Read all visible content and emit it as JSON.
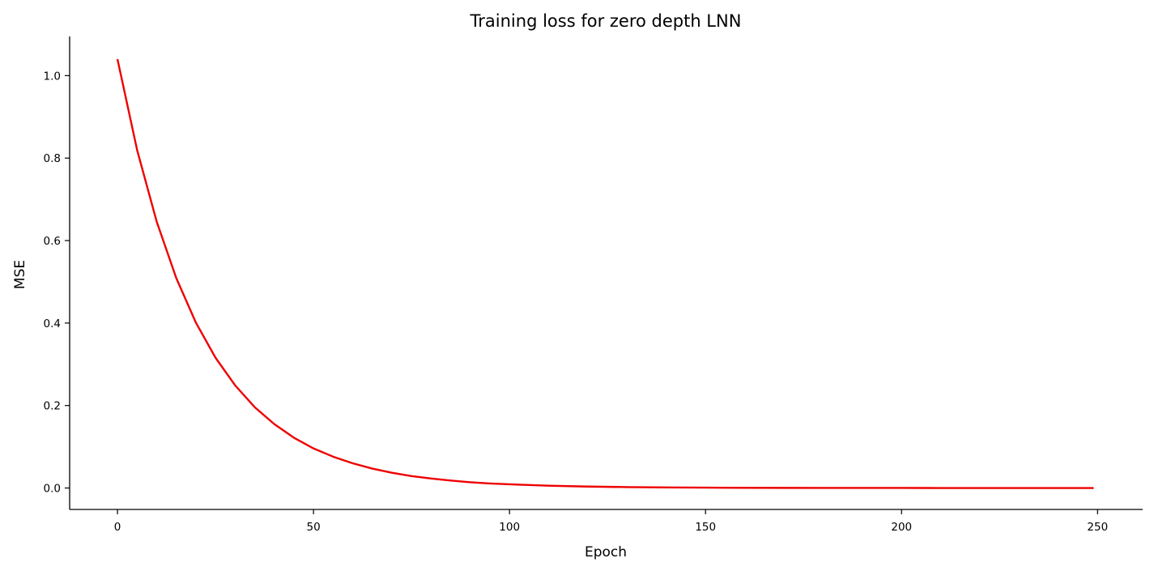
{
  "chart_data": {
    "type": "line",
    "title": "Training loss for zero depth LNN",
    "xlabel": "Epoch",
    "ylabel": "MSE",
    "xlim": [
      -12.2,
      261.5
    ],
    "ylim": [
      -0.052,
      1.095
    ],
    "xticks": [
      0,
      50,
      100,
      150,
      200,
      250
    ],
    "yticks": [
      0.0,
      0.2,
      0.4,
      0.6,
      0.8,
      1.0
    ],
    "xtick_labels": [
      "0",
      "50",
      "100",
      "150",
      "200",
      "250"
    ],
    "ytick_labels": [
      "0.0",
      "0.2",
      "0.4",
      "0.6",
      "0.8",
      "1.0"
    ],
    "grid": false,
    "series": [
      {
        "color": "#ee0000",
        "x": [
          0,
          5,
          10,
          15,
          20,
          25,
          30,
          35,
          40,
          45,
          50,
          55,
          60,
          65,
          70,
          75,
          80,
          85,
          90,
          95,
          100,
          110,
          120,
          130,
          140,
          150,
          160,
          170,
          180,
          190,
          200,
          210,
          220,
          230,
          240,
          249
        ],
        "y": [
          1.04,
          0.82,
          0.646,
          0.509,
          0.401,
          0.316,
          0.249,
          0.196,
          0.155,
          0.122,
          0.096,
          0.076,
          0.06,
          0.047,
          0.037,
          0.029,
          0.023,
          0.018,
          0.014,
          0.011,
          0.009,
          0.0056,
          0.0035,
          0.0022,
          0.0014,
          0.0009,
          0.0005,
          0.0003,
          0.0002,
          0.0001,
          0.0001,
          0.0,
          0.0,
          0.0,
          0.0,
          0.0
        ]
      }
    ]
  }
}
